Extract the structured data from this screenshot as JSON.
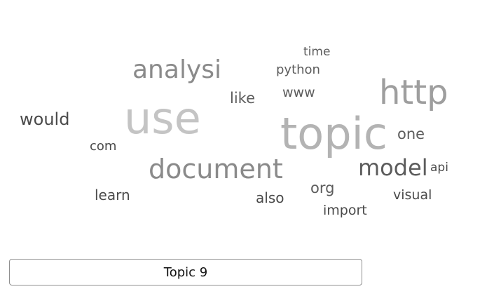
{
  "word_cloud": {
    "words": {
      "topic": "topic",
      "use": "use",
      "http": "http",
      "analysi": "analysi",
      "document": "document",
      "model": "model",
      "would": "would",
      "like": "like",
      "one": "one",
      "www": "www",
      "python": "python",
      "time": "time",
      "com": "com",
      "api": "api",
      "learn": "learn",
      "also": "also",
      "org": "org",
      "visual": "visual",
      "import": "import"
    }
  },
  "topic_selector": {
    "selected": "Topic 9"
  }
}
